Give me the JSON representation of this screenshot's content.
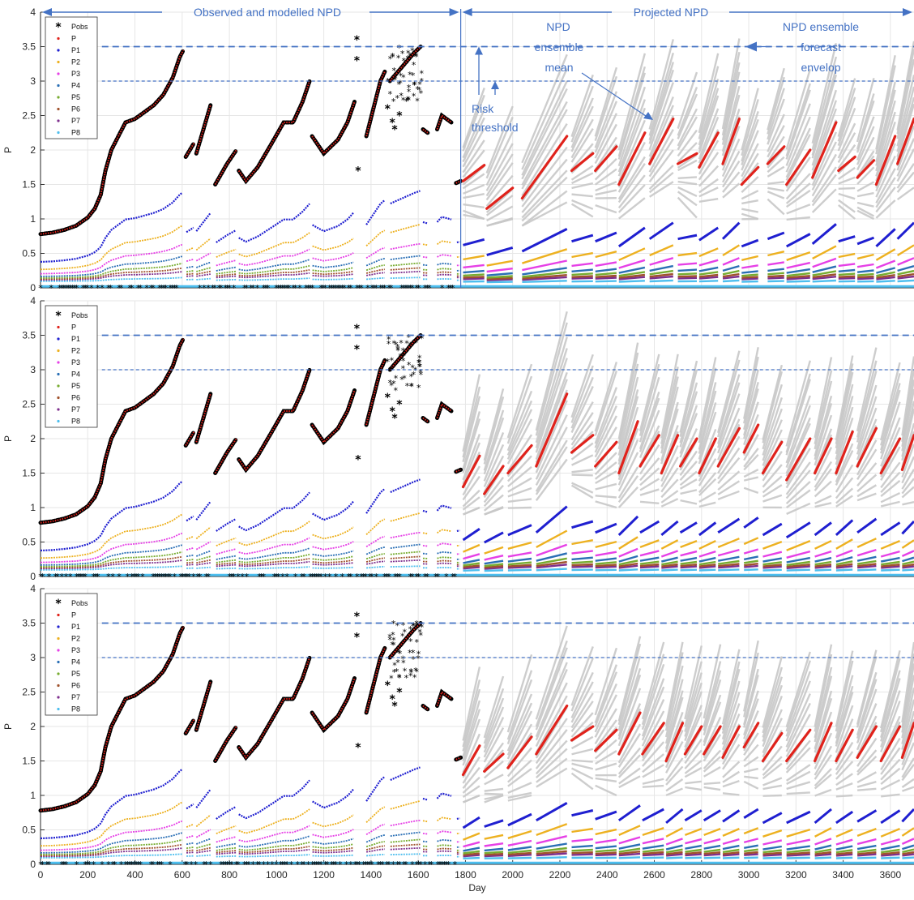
{
  "chart_data": {
    "type": "scatter",
    "x_label": "Day",
    "y_label": "P",
    "x_range": [
      0,
      3700
    ],
    "y_range": [
      0,
      4
    ],
    "x_ticks": [
      0,
      200,
      400,
      600,
      800,
      1000,
      1200,
      1400,
      1600,
      1800,
      2000,
      2200,
      2400,
      2600,
      2800,
      3000,
      3200,
      3400,
      3600
    ],
    "y_ticks": [
      "0",
      "0.5",
      "1",
      "1.5",
      "2",
      "2.5",
      "3",
      "3.5",
      "4"
    ],
    "grid": true,
    "legend_position": "top-left",
    "risk_thresholds": [
      3.5,
      3.0
    ],
    "forecast_start_day": 1780,
    "legend": [
      {
        "label": "Pobs",
        "marker": "star",
        "color": "#000000"
      },
      {
        "label": "P",
        "marker": "dot",
        "color": "#e0221b"
      },
      {
        "label": "P1",
        "marker": "dot",
        "color": "#1f1fd0"
      },
      {
        "label": "P2",
        "marker": "dot",
        "color": "#edb120"
      },
      {
        "label": "P3",
        "marker": "dot",
        "color": "#e640e6"
      },
      {
        "label": "P4",
        "marker": "dot",
        "color": "#2a6fb5"
      },
      {
        "label": "P5",
        "marker": "dot",
        "color": "#77ac30"
      },
      {
        "label": "P6",
        "marker": "dot",
        "color": "#a0522d"
      },
      {
        "label": "P7",
        "marker": "dot",
        "color": "#7e2f8e"
      },
      {
        "label": "P8",
        "marker": "dot",
        "color": "#4dbeee"
      }
    ],
    "colors": {
      "envelope": "#c8c8c8",
      "threshold": "#4472c4",
      "annotation": "#4472c4"
    },
    "annotations": {
      "observed": "Observed and modelled NPD",
      "projected": "Projected NPD",
      "risk": [
        "Risk",
        "threshold"
      ],
      "mean": [
        "NPD",
        "ensemble",
        "mean"
      ],
      "envelope": [
        "NPD ensemble",
        "forecast",
        "envelop"
      ]
    },
    "observed_P_segments": [
      [
        [
          0,
          0.78
        ],
        [
          50,
          0.8
        ],
        [
          100,
          0.84
        ],
        [
          150,
          0.9
        ],
        [
          200,
          1.02
        ],
        [
          230,
          1.15
        ],
        [
          255,
          1.35
        ],
        [
          275,
          1.7
        ],
        [
          300,
          2.0
        ],
        [
          330,
          2.2
        ],
        [
          360,
          2.4
        ],
        [
          400,
          2.45
        ],
        [
          440,
          2.55
        ],
        [
          480,
          2.65
        ],
        [
          520,
          2.8
        ],
        [
          560,
          3.05
        ],
        [
          590,
          3.35
        ],
        [
          605,
          3.45
        ]
      ],
      [
        [
          615,
          1.9
        ],
        [
          650,
          2.1
        ]
      ],
      [
        [
          660,
          1.95
        ],
        [
          720,
          2.65
        ]
      ],
      [
        [
          740,
          1.5
        ],
        [
          790,
          1.8
        ],
        [
          830,
          2.0
        ]
      ],
      [
        [
          840,
          1.7
        ],
        [
          870,
          1.55
        ],
        [
          920,
          1.75
        ],
        [
          980,
          2.1
        ],
        [
          1030,
          2.4
        ],
        [
          1070,
          2.4
        ],
        [
          1110,
          2.7
        ],
        [
          1140,
          3.0
        ]
      ],
      [
        [
          1150,
          2.2
        ],
        [
          1200,
          1.95
        ],
        [
          1260,
          2.15
        ],
        [
          1300,
          2.4
        ],
        [
          1330,
          2.7
        ]
      ],
      [
        [
          1380,
          2.2
        ],
        [
          1410,
          2.6
        ],
        [
          1440,
          3.0
        ],
        [
          1460,
          3.15
        ]
      ],
      [
        [
          1480,
          3.0
        ],
        [
          1530,
          3.2
        ],
        [
          1580,
          3.4
        ],
        [
          1610,
          3.5
        ]
      ],
      [
        [
          1620,
          2.3
        ],
        [
          1640,
          2.25
        ]
      ],
      [
        [
          1680,
          2.3
        ],
        [
          1700,
          2.5
        ],
        [
          1740,
          2.4
        ]
      ],
      [
        [
          1760,
          1.52
        ],
        [
          1780,
          1.55
        ]
      ]
    ],
    "obs_only": [
      [
        1340,
        3.6
      ],
      [
        1340,
        3.3
      ],
      [
        1345,
        1.7
      ],
      [
        1470,
        2.6
      ],
      [
        1490,
        2.4
      ],
      [
        1500,
        2.3
      ],
      [
        1520,
        2.5
      ]
    ],
    "panels": [
      {
        "panel": 1,
        "mean_segments": [
          [
            [
              1790,
              1.55
            ],
            [
              1880,
              1.78
            ]
          ],
          [
            [
              1890,
              1.15
            ],
            [
              2000,
              1.45
            ]
          ],
          [
            [
              2040,
              1.3
            ],
            [
              2230,
              2.2
            ]
          ],
          [
            [
              2250,
              1.7
            ],
            [
              2340,
              1.95
            ]
          ],
          [
            [
              2350,
              1.7
            ],
            [
              2440,
              2.05
            ]
          ],
          [
            [
              2450,
              1.5
            ],
            [
              2560,
              2.25
            ]
          ],
          [
            [
              2580,
              1.8
            ],
            [
              2680,
              2.45
            ]
          ],
          [
            [
              2700,
              1.8
            ],
            [
              2780,
              1.95
            ]
          ],
          [
            [
              2790,
              1.75
            ],
            [
              2870,
              2.25
            ]
          ],
          [
            [
              2890,
              1.8
            ],
            [
              2960,
              2.45
            ]
          ],
          [
            [
              2970,
              1.5
            ],
            [
              3040,
              1.75
            ]
          ],
          [
            [
              3080,
              1.8
            ],
            [
              3150,
              2.05
            ]
          ],
          [
            [
              3160,
              1.5
            ],
            [
              3260,
              2.0
            ]
          ],
          [
            [
              3270,
              1.6
            ],
            [
              3370,
              2.4
            ]
          ],
          [
            [
              3380,
              1.7
            ],
            [
              3450,
              1.9
            ]
          ],
          [
            [
              3460,
              1.6
            ],
            [
              3530,
              1.85
            ]
          ],
          [
            [
              3540,
              1.5
            ],
            [
              3620,
              2.2
            ]
          ],
          [
            [
              3630,
              1.8
            ],
            [
              3700,
              2.45
            ]
          ]
        ]
      },
      {
        "panel": 2,
        "mean_segments": [
          [
            [
              1790,
              1.3
            ],
            [
              1860,
              1.75
            ]
          ],
          [
            [
              1880,
              1.2
            ],
            [
              1960,
              1.6
            ]
          ],
          [
            [
              1980,
              1.5
            ],
            [
              2080,
              1.9
            ]
          ],
          [
            [
              2100,
              1.6
            ],
            [
              2230,
              2.65
            ]
          ],
          [
            [
              2250,
              1.8
            ],
            [
              2340,
              2.05
            ]
          ],
          [
            [
              2350,
              1.6
            ],
            [
              2440,
              1.95
            ]
          ],
          [
            [
              2450,
              1.5
            ],
            [
              2530,
              2.25
            ]
          ],
          [
            [
              2540,
              1.6
            ],
            [
              2620,
              2.05
            ]
          ],
          [
            [
              2630,
              1.5
            ],
            [
              2700,
              2.05
            ]
          ],
          [
            [
              2710,
              1.6
            ],
            [
              2780,
              2.0
            ]
          ],
          [
            [
              2790,
              1.5
            ],
            [
              2860,
              2.0
            ]
          ],
          [
            [
              2870,
              1.6
            ],
            [
              2960,
              2.15
            ]
          ],
          [
            [
              2980,
              1.8
            ],
            [
              3040,
              2.2
            ]
          ],
          [
            [
              3060,
              1.5
            ],
            [
              3140,
              1.95
            ]
          ],
          [
            [
              3160,
              1.4
            ],
            [
              3260,
              2.0
            ]
          ],
          [
            [
              3280,
              1.5
            ],
            [
              3350,
              2.0
            ]
          ],
          [
            [
              3370,
              1.5
            ],
            [
              3440,
              2.1
            ]
          ],
          [
            [
              3460,
              1.6
            ],
            [
              3540,
              2.15
            ]
          ],
          [
            [
              3560,
              1.5
            ],
            [
              3640,
              2.0
            ]
          ],
          [
            [
              3650,
              1.55
            ],
            [
              3700,
              2.05
            ]
          ]
        ]
      },
      {
        "panel": 3,
        "mean_segments": [
          [
            [
              1790,
              1.3
            ],
            [
              1860,
              1.72
            ]
          ],
          [
            [
              1880,
              1.35
            ],
            [
              1960,
              1.6
            ]
          ],
          [
            [
              1980,
              1.4
            ],
            [
              2080,
              1.85
            ]
          ],
          [
            [
              2100,
              1.6
            ],
            [
              2230,
              2.3
            ]
          ],
          [
            [
              2250,
              1.8
            ],
            [
              2340,
              2.0
            ]
          ],
          [
            [
              2350,
              1.65
            ],
            [
              2440,
              1.95
            ]
          ],
          [
            [
              2450,
              1.6
            ],
            [
              2540,
              2.2
            ]
          ],
          [
            [
              2550,
              1.6
            ],
            [
              2640,
              2.05
            ]
          ],
          [
            [
              2650,
              1.5
            ],
            [
              2720,
              2.05
            ]
          ],
          [
            [
              2730,
              1.6
            ],
            [
              2800,
              2.0
            ]
          ],
          [
            [
              2810,
              1.6
            ],
            [
              2880,
              2.0
            ]
          ],
          [
            [
              2890,
              1.55
            ],
            [
              2960,
              2.0
            ]
          ],
          [
            [
              2980,
              1.7
            ],
            [
              3040,
              2.05
            ]
          ],
          [
            [
              3060,
              1.5
            ],
            [
              3140,
              1.9
            ]
          ],
          [
            [
              3160,
              1.5
            ],
            [
              3260,
              1.95
            ]
          ],
          [
            [
              3280,
              1.5
            ],
            [
              3350,
              2.05
            ]
          ],
          [
            [
              3370,
              1.5
            ],
            [
              3440,
              1.95
            ]
          ],
          [
            [
              3460,
              1.55
            ],
            [
              3540,
              2.0
            ]
          ],
          [
            [
              3560,
              1.5
            ],
            [
              3640,
              2.0
            ]
          ],
          [
            [
              3650,
              1.55
            ],
            [
              3700,
              2.05
            ]
          ]
        ]
      }
    ],
    "component_levels_end": {
      "P1": 0.45,
      "P2": 0.28,
      "P3": 0.2,
      "P4": 0.14,
      "P5": 0.1,
      "P6": 0.08,
      "P7": 0.06,
      "P8": 0.03
    }
  }
}
